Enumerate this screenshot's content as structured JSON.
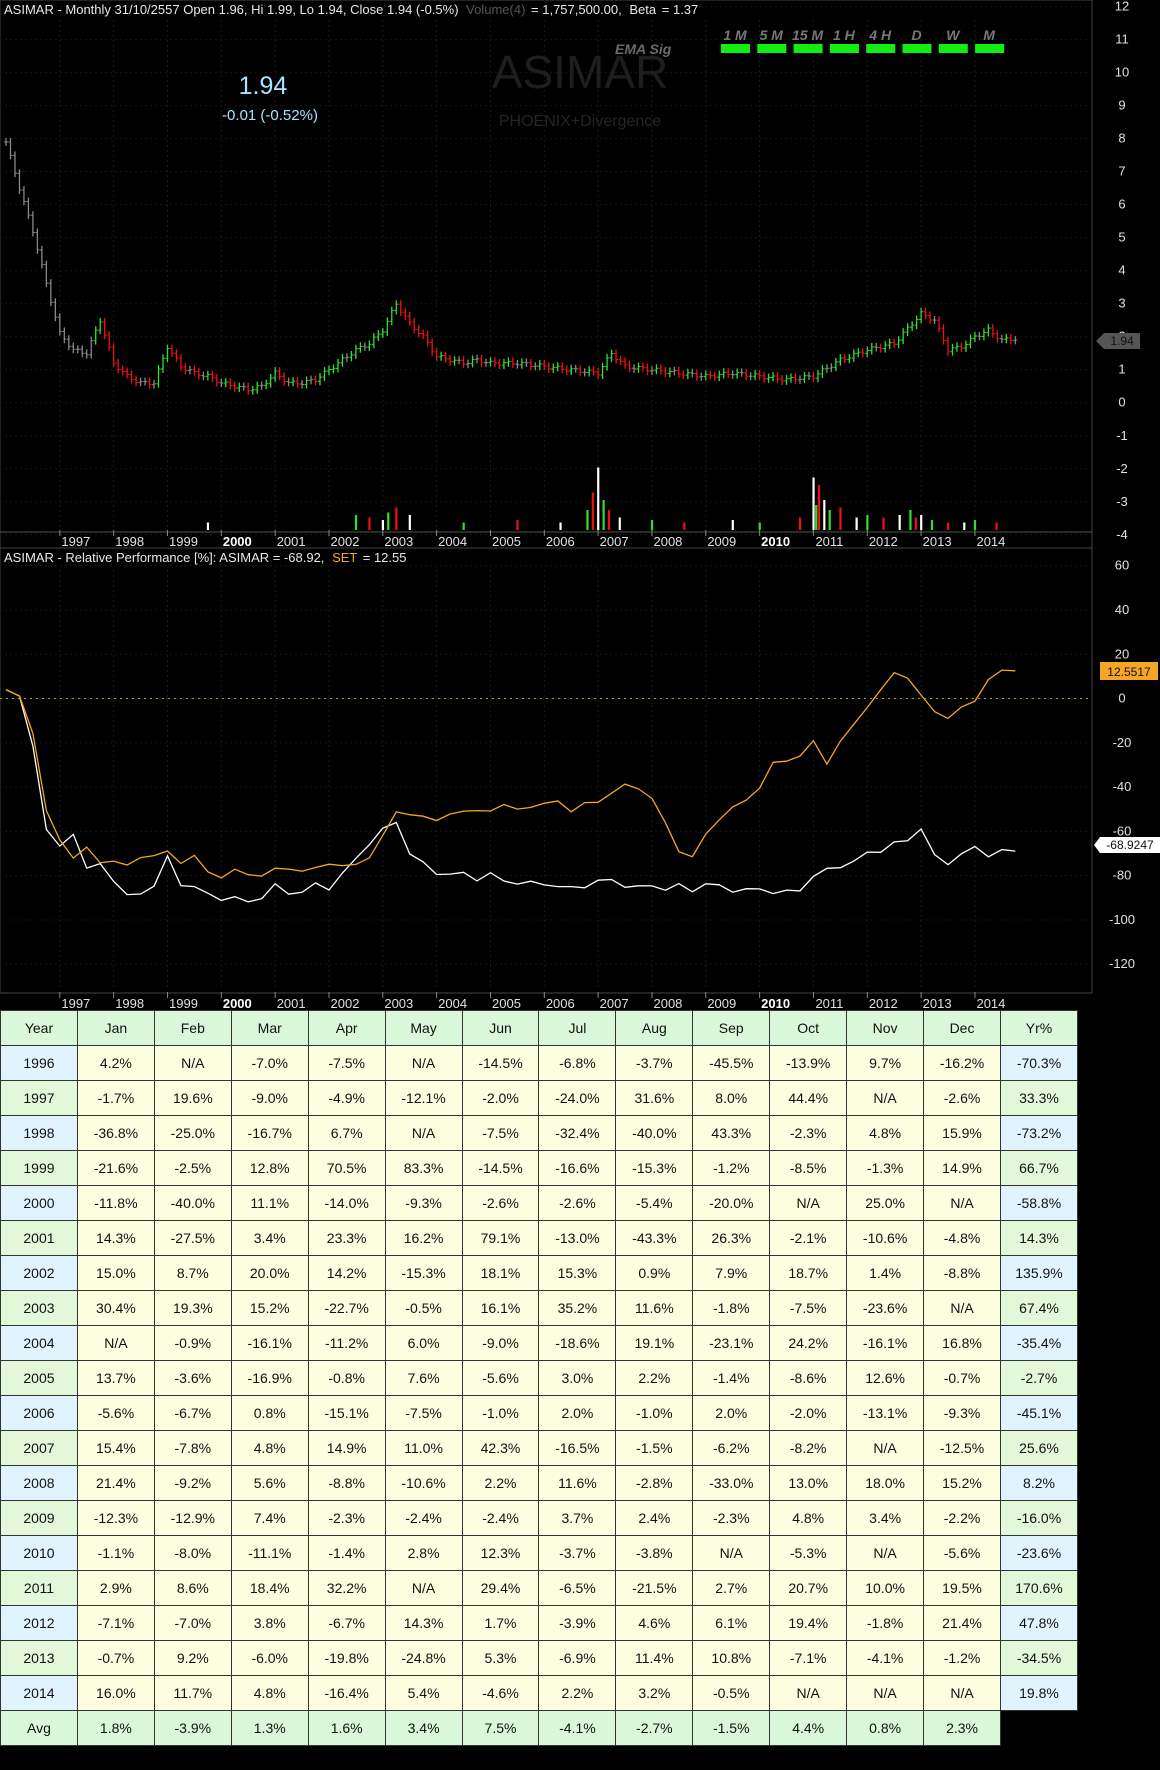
{
  "header": {
    "prefix": "ASIMAR - Monthly 31/10/2557 Open 1.96, Hi 1.99, Lo 1.94, Close 1.94 (-0.5%)",
    "volume_label": "Volume(4)",
    "volume_value": "= 1,757,500.00,",
    "beta_label": "Beta",
    "beta_value": "= 1.37"
  },
  "price": {
    "last": "1.94",
    "change": "-0.01 (-0.52%)"
  },
  "watermark": {
    "symbol": "ASIMAR",
    "subtitle": "PHOENIX+Divergence",
    "ema_label": "EMA Sig"
  },
  "timeframes": [
    "1 M",
    "5 M",
    "15 M",
    "1 H",
    "4 H",
    "D",
    "W",
    "M"
  ],
  "colors": {
    "up": "#33dd33",
    "down": "#ee1111",
    "neutral": "#888888",
    "asimar_line": "#ffffff",
    "set_line": "#f5a623",
    "signal_bar": "#11ee11"
  },
  "rp_header": {
    "prefix": "ASIMAR - Relative Performance [%]: ASIMAR = -68.92,",
    "set_label": "SET",
    "set_value": "= 12.55"
  },
  "chart_data": [
    {
      "type": "ohlc",
      "title": "ASIMAR - Monthly",
      "x_ticks": [
        "1997",
        "1998",
        "1999",
        "2000",
        "2001",
        "2002",
        "2003",
        "2004",
        "2005",
        "2006",
        "2007",
        "2008",
        "2009",
        "2010",
        "2011",
        "2012",
        "2013",
        "2014"
      ],
      "y_ticks": [
        -4,
        -3,
        -2,
        -1,
        0,
        1,
        2,
        3,
        4,
        5,
        6,
        7,
        8,
        9,
        10,
        11,
        12
      ],
      "ylim": [
        -4.4,
        12.2
      ],
      "last_price_label": "1.94",
      "close_series": {
        "x": [
          1996.0,
          1996.25,
          1996.5,
          1996.75,
          1997.0,
          1997.25,
          1997.5,
          1997.75,
          1998.0,
          1998.25,
          1998.5,
          1998.75,
          1999.0,
          1999.25,
          1999.5,
          1999.75,
          2000.0,
          2000.25,
          2000.5,
          2000.75,
          2001.0,
          2001.25,
          2001.5,
          2001.75,
          2002.0,
          2002.25,
          2002.5,
          2002.75,
          2003.0,
          2003.25,
          2003.5,
          2003.75,
          2004.0,
          2004.25,
          2004.5,
          2004.75,
          2005.0,
          2005.5,
          2006.0,
          2006.5,
          2007.0,
          2007.25,
          2007.5,
          2008.0,
          2008.5,
          2009.0,
          2009.5,
          2010.0,
          2010.5,
          2011.0,
          2011.5,
          2012.0,
          2012.5,
          2013.0,
          2013.25,
          2013.5,
          2013.75,
          2014.0,
          2014.25,
          2014.5,
          2014.75
        ],
        "y": [
          7.9,
          6.5,
          5.2,
          3.6,
          2.1,
          1.6,
          1.5,
          2.5,
          1.2,
          0.8,
          0.6,
          0.6,
          1.7,
          1.1,
          0.9,
          0.8,
          0.6,
          0.5,
          0.4,
          0.5,
          0.9,
          0.6,
          0.6,
          0.7,
          1.0,
          1.3,
          1.6,
          1.8,
          2.2,
          3.0,
          2.4,
          2.0,
          1.4,
          1.3,
          1.2,
          1.3,
          1.2,
          1.2,
          1.1,
          1.0,
          0.9,
          1.5,
          1.1,
          1.0,
          0.9,
          0.8,
          0.9,
          0.8,
          0.7,
          0.8,
          1.3,
          1.6,
          1.8,
          2.7,
          2.5,
          1.6,
          1.7,
          2.0,
          2.2,
          1.9,
          1.94
        ]
      },
      "volume_ticks": [
        1999.75,
        2002.5,
        2002.75,
        2003.0,
        2003.1,
        2003.25,
        2003.5,
        2004.5,
        2005.5,
        2006.3,
        2006.8,
        2006.9,
        2007.0,
        2007.1,
        2007.2,
        2007.4,
        2008.0,
        2008.6,
        2009.5,
        2010.0,
        2010.75,
        2011.0,
        2011.05,
        2011.1,
        2011.2,
        2011.3,
        2011.5,
        2011.8,
        2012.0,
        2012.3,
        2012.6,
        2012.8,
        2012.9,
        2013.0,
        2013.2,
        2013.5,
        2013.8,
        2014.0,
        2014.4
      ],
      "volume_values": [
        0.3,
        0.6,
        0.5,
        0.4,
        0.7,
        0.9,
        0.6,
        0.3,
        0.4,
        0.3,
        0.8,
        1.5,
        2.5,
        1.2,
        0.8,
        0.5,
        0.4,
        0.3,
        0.4,
        0.3,
        0.5,
        2.1,
        1.0,
        1.8,
        1.2,
        0.8,
        0.9,
        0.5,
        0.6,
        0.5,
        0.6,
        0.8,
        0.5,
        0.6,
        0.4,
        0.3,
        0.3,
        0.4,
        0.3
      ]
    },
    {
      "type": "line",
      "title": "ASIMAR - Relative Performance [%]",
      "x_ticks": [
        "1997",
        "1998",
        "1999",
        "2000",
        "2001",
        "2002",
        "2003",
        "2004",
        "2005",
        "2006",
        "2007",
        "2008",
        "2009",
        "2010",
        "2011",
        "2012",
        "2013",
        "2014"
      ],
      "y_ticks": [
        -120,
        -100,
        -80,
        -60,
        -40,
        -20,
        0,
        20,
        40,
        60
      ],
      "ylim": [
        -133,
        68
      ],
      "x": [
        1996.0,
        1996.25,
        1996.5,
        1996.75,
        1997.0,
        1997.25,
        1997.5,
        1997.75,
        1998.0,
        1998.25,
        1998.5,
        1998.75,
        1999.0,
        1999.25,
        1999.5,
        1999.75,
        2000.0,
        2000.25,
        2000.5,
        2000.75,
        2001.0,
        2001.25,
        2001.5,
        2001.75,
        2002.0,
        2002.25,
        2002.5,
        2002.75,
        2003.0,
        2003.25,
        2003.5,
        2003.75,
        2004.0,
        2004.25,
        2004.5,
        2004.75,
        2005.0,
        2005.25,
        2005.5,
        2005.75,
        2006.0,
        2006.25,
        2006.5,
        2006.75,
        2007.0,
        2007.25,
        2007.5,
        2007.75,
        2008.0,
        2008.25,
        2008.5,
        2008.75,
        2009.0,
        2009.25,
        2009.5,
        2009.75,
        2010.0,
        2010.25,
        2010.5,
        2010.75,
        2011.0,
        2011.25,
        2011.5,
        2011.75,
        2012.0,
        2012.25,
        2012.5,
        2012.75,
        2013.0,
        2013.25,
        2013.5,
        2013.75,
        2014.0,
        2014.25,
        2014.5,
        2014.75
      ],
      "series": [
        {
          "name": "ASIMAR",
          "values": [
            4,
            0,
            -20,
            -60,
            -67,
            -60,
            -78,
            -74,
            -82,
            -90,
            -87,
            -85,
            -72,
            -83,
            -86,
            -88,
            -90,
            -91,
            -91,
            -90,
            -85,
            -87,
            -88,
            -84,
            -85,
            -80,
            -72,
            -65,
            -60,
            -55,
            -70,
            -75,
            -78,
            -80,
            -79,
            -81,
            -80,
            -82,
            -83,
            -84,
            -83,
            -85,
            -86,
            -84,
            -83,
            -82,
            -84,
            -86,
            -84,
            -86,
            -85,
            -86,
            -84,
            -85,
            -86,
            -87,
            -86,
            -87,
            -88,
            -86,
            -80,
            -78,
            -75,
            -74,
            -70,
            -68,
            -66,
            -64,
            -58,
            -72,
            -74,
            -70,
            -68,
            -70,
            -69,
            -68.92
          ]
        },
        {
          "name": "SET",
          "values": [
            4,
            0,
            -15,
            -50,
            -65,
            -72,
            -66,
            -75,
            -74,
            -74,
            -72,
            -72,
            -68,
            -74,
            -72,
            -78,
            -80,
            -78,
            -80,
            -79,
            -77,
            -78,
            -77,
            -76,
            -76,
            -75,
            -74,
            -73,
            -62,
            -50,
            -53,
            -54,
            -54,
            -52,
            -52,
            -50,
            -50,
            -49,
            -50,
            -48,
            -48,
            -47,
            -50,
            -47,
            -48,
            -42,
            -38,
            -42,
            -45,
            -55,
            -70,
            -72,
            -60,
            -55,
            -50,
            -45,
            -40,
            -30,
            -28,
            -25,
            -20,
            -30,
            -18,
            -12,
            -5,
            5,
            12,
            8,
            2,
            -5,
            -10,
            -4,
            0,
            8,
            12,
            12.55
          ]
        }
      ],
      "asimar_label": "-68.9247",
      "set_label": "12.5517"
    }
  ],
  "table": {
    "headers": [
      "Year",
      "Jan",
      "Feb",
      "Mar",
      "Apr",
      "May",
      "Jun",
      "Jul",
      "Aug",
      "Sep",
      "Oct",
      "Nov",
      "Dec",
      "Yr%"
    ],
    "rows": [
      [
        "1996",
        "4.2%",
        "N/A",
        "-7.0%",
        "-7.5%",
        "N/A",
        "-14.5%",
        "-6.8%",
        "-3.7%",
        "-45.5%",
        "-13.9%",
        "9.7%",
        "-16.2%",
        "-70.3%"
      ],
      [
        "1997",
        "-1.7%",
        "19.6%",
        "-9.0%",
        "-4.9%",
        "-12.1%",
        "-2.0%",
        "-24.0%",
        "31.6%",
        "8.0%",
        "44.4%",
        "N/A",
        "-2.6%",
        "33.3%"
      ],
      [
        "1998",
        "-36.8%",
        "-25.0%",
        "-16.7%",
        "6.7%",
        "N/A",
        "-7.5%",
        "-32.4%",
        "-40.0%",
        "43.3%",
        "-2.3%",
        "4.8%",
        "15.9%",
        "-73.2%"
      ],
      [
        "1999",
        "-21.6%",
        "-2.5%",
        "12.8%",
        "70.5%",
        "83.3%",
        "-14.5%",
        "-16.6%",
        "-15.3%",
        "-1.2%",
        "-8.5%",
        "-1.3%",
        "14.9%",
        "66.7%"
      ],
      [
        "2000",
        "-11.8%",
        "-40.0%",
        "11.1%",
        "-14.0%",
        "-9.3%",
        "-2.6%",
        "-2.6%",
        "-5.4%",
        "-20.0%",
        "N/A",
        "25.0%",
        "N/A",
        "-58.8%"
      ],
      [
        "2001",
        "14.3%",
        "-27.5%",
        "3.4%",
        "23.3%",
        "16.2%",
        "79.1%",
        "-13.0%",
        "-43.3%",
        "26.3%",
        "-2.1%",
        "-10.6%",
        "-4.8%",
        "14.3%"
      ],
      [
        "2002",
        "15.0%",
        "8.7%",
        "20.0%",
        "14.2%",
        "-15.3%",
        "18.1%",
        "15.3%",
        "0.9%",
        "7.9%",
        "18.7%",
        "1.4%",
        "-8.8%",
        "135.9%"
      ],
      [
        "2003",
        "30.4%",
        "19.3%",
        "15.2%",
        "-22.7%",
        "-0.5%",
        "16.1%",
        "35.2%",
        "11.6%",
        "-1.8%",
        "-7.5%",
        "-23.6%",
        "N/A",
        "67.4%"
      ],
      [
        "2004",
        "N/A",
        "-0.9%",
        "-16.1%",
        "-11.2%",
        "6.0%",
        "-9.0%",
        "-18.6%",
        "19.1%",
        "-23.1%",
        "24.2%",
        "-16.1%",
        "16.8%",
        "-35.4%"
      ],
      [
        "2005",
        "13.7%",
        "-3.6%",
        "-16.9%",
        "-0.8%",
        "7.6%",
        "-5.6%",
        "3.0%",
        "2.2%",
        "-1.4%",
        "-8.6%",
        "12.6%",
        "-0.7%",
        "-2.7%"
      ],
      [
        "2006",
        "-5.6%",
        "-6.7%",
        "0.8%",
        "-15.1%",
        "-7.5%",
        "-1.0%",
        "2.0%",
        "-1.0%",
        "2.0%",
        "-2.0%",
        "-13.1%",
        "-9.3%",
        "-45.1%"
      ],
      [
        "2007",
        "15.4%",
        "-7.8%",
        "4.8%",
        "14.9%",
        "11.0%",
        "42.3%",
        "-16.5%",
        "-1.5%",
        "-6.2%",
        "-8.2%",
        "N/A",
        "-12.5%",
        "25.6%"
      ],
      [
        "2008",
        "21.4%",
        "-9.2%",
        "5.6%",
        "-8.8%",
        "-10.6%",
        "2.2%",
        "11.6%",
        "-2.8%",
        "-33.0%",
        "13.0%",
        "18.0%",
        "15.2%",
        "8.2%"
      ],
      [
        "2009",
        "-12.3%",
        "-12.9%",
        "7.4%",
        "-2.3%",
        "-2.4%",
        "-2.4%",
        "3.7%",
        "2.4%",
        "-2.3%",
        "4.8%",
        "3.4%",
        "-2.2%",
        "-16.0%"
      ],
      [
        "2010",
        "-1.1%",
        "-8.0%",
        "-11.1%",
        "-1.4%",
        "2.8%",
        "12.3%",
        "-3.7%",
        "-3.8%",
        "N/A",
        "-5.3%",
        "N/A",
        "-5.6%",
        "-23.6%"
      ],
      [
        "2011",
        "2.9%",
        "8.6%",
        "18.4%",
        "32.2%",
        "N/A",
        "29.4%",
        "-6.5%",
        "-21.5%",
        "2.7%",
        "20.7%",
        "10.0%",
        "19.5%",
        "170.6%"
      ],
      [
        "2012",
        "-7.1%",
        "-7.0%",
        "3.8%",
        "-6.7%",
        "14.3%",
        "1.7%",
        "-3.9%",
        "4.6%",
        "6.1%",
        "19.4%",
        "-1.8%",
        "21.4%",
        "47.8%"
      ],
      [
        "2013",
        "-0.7%",
        "9.2%",
        "-6.0%",
        "-19.8%",
        "-24.8%",
        "5.3%",
        "-6.9%",
        "11.4%",
        "10.8%",
        "-7.1%",
        "-4.1%",
        "-1.2%",
        "-34.5%"
      ],
      [
        "2014",
        "16.0%",
        "11.7%",
        "4.8%",
        "-16.4%",
        "5.4%",
        "-4.6%",
        "2.2%",
        "3.2%",
        "-0.5%",
        "N/A",
        "N/A",
        "N/A",
        "19.8%"
      ]
    ],
    "avg": [
      "Avg",
      "1.8%",
      "-3.9%",
      "1.3%",
      "1.6%",
      "3.4%",
      "7.5%",
      "-4.1%",
      "-2.7%",
      "-1.5%",
      "4.4%",
      "0.8%",
      "2.3%",
      ""
    ]
  }
}
